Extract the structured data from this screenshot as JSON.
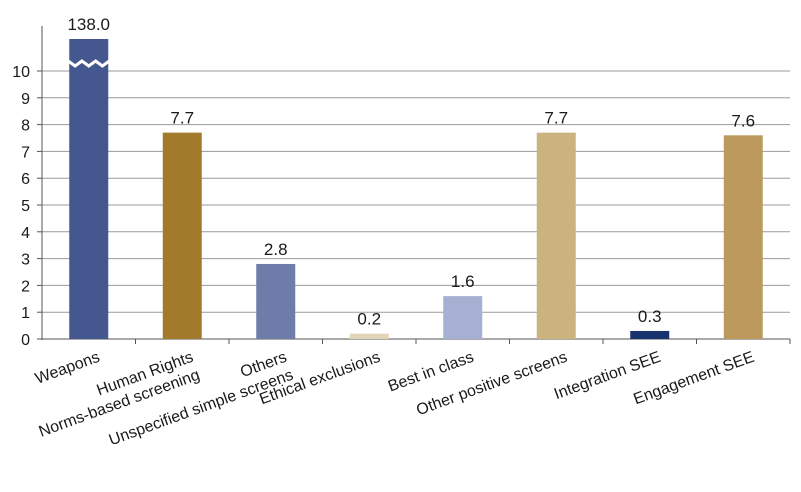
{
  "chart_data": {
    "type": "bar",
    "title": "",
    "xlabel": "",
    "ylabel": "",
    "ylim": [
      0,
      10
    ],
    "yticks": [
      "0",
      "1",
      "2",
      "3",
      "4",
      "5",
      "6",
      "7",
      "8",
      "9",
      "10"
    ],
    "axis_break": {
      "category": "Weapons",
      "true_value": 138.0
    },
    "grid": true,
    "legend": "none",
    "categories": [
      [
        "Weapons"
      ],
      [
        "Human Rights",
        "Norms-based screening"
      ],
      [
        "Others",
        "Unspecified simple screens"
      ],
      [
        "Ethical exclusions"
      ],
      [
        "Best in class"
      ],
      [
        "Other positive screens"
      ],
      [
        "Integration SEE"
      ],
      [
        "Engagement SEE"
      ]
    ],
    "values": [
      138.0,
      7.7,
      2.8,
      0.2,
      1.6,
      7.7,
      0.3,
      7.6
    ],
    "data_labels": [
      "138.0",
      "7.7",
      "2.8",
      "0.2",
      "1.6",
      "7.7",
      "0.3",
      "7.6"
    ],
    "colors": [
      "#44578f",
      "#a27a2c",
      "#6e7ca9",
      "#e2d5b8",
      "#a6b0d2",
      "#cab37e",
      "#18326e",
      "#bc9a5d"
    ]
  }
}
